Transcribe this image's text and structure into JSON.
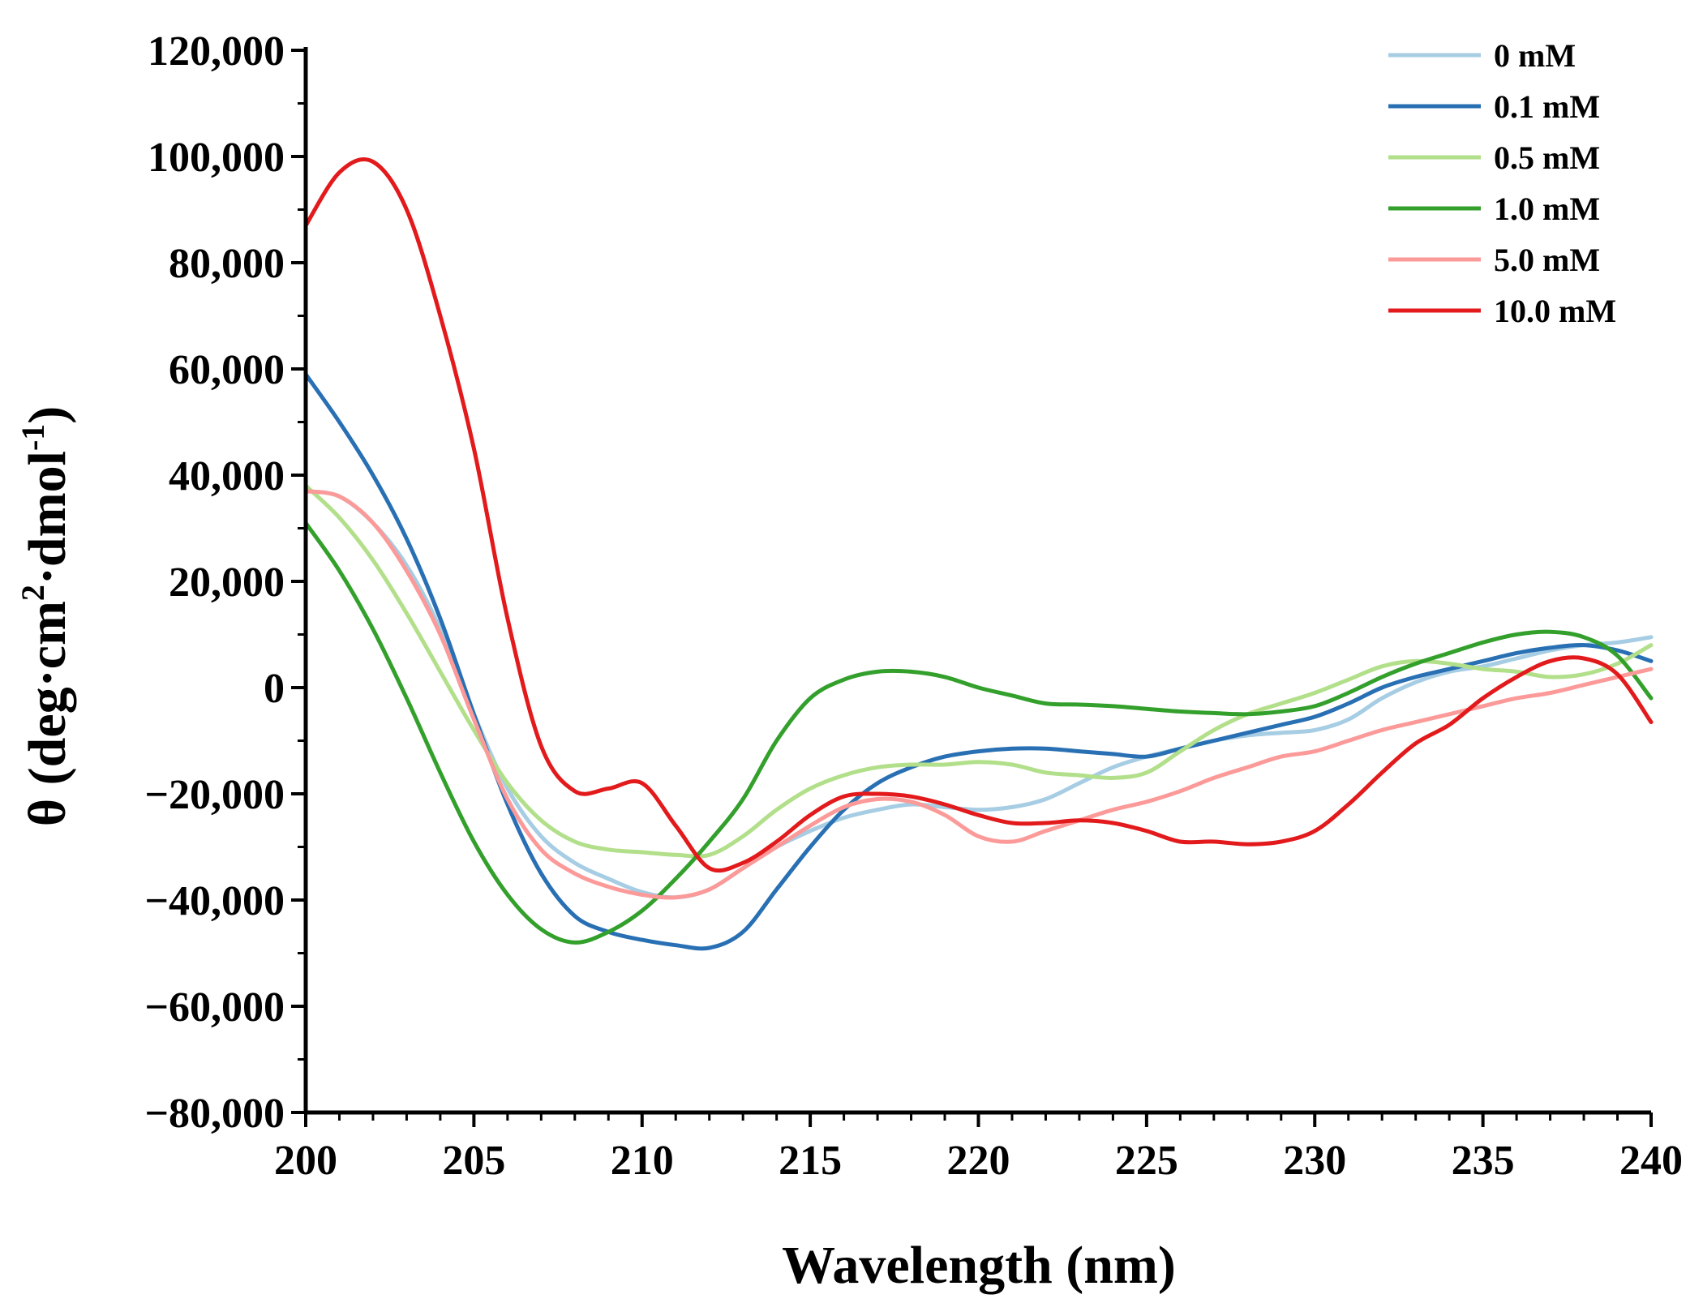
{
  "chart_data": {
    "type": "line",
    "title": "",
    "xlabel": "Wavelength (nm)",
    "ylabel": {
      "prefix": "θ (deg·cm",
      "sup1": "2",
      "middle": "·dmol",
      "sup2": "-1",
      "suffix": ")"
    },
    "xlim": [
      200,
      240
    ],
    "ylim": [
      -80000,
      120000
    ],
    "x_ticks": [
      200,
      205,
      210,
      215,
      220,
      225,
      230,
      235,
      240
    ],
    "x_tick_labels": [
      "200",
      "205",
      "210",
      "215",
      "220",
      "225",
      "230",
      "235",
      "240"
    ],
    "y_ticks": [
      -80000,
      -60000,
      -40000,
      -20000,
      0,
      20000,
      40000,
      60000,
      80000,
      100000,
      120000
    ],
    "y_tick_labels": [
      "−80,000",
      "−60,000",
      "−40,000",
      "−20,000",
      "0",
      "20,000",
      "40,000",
      "60,000",
      "80,000",
      "100,000",
      "120,000"
    ],
    "legend_position": "top-right",
    "series": [
      {
        "name": "0 mM",
        "color": "#a6cde3",
        "x": [
          200,
          201,
          202,
          203,
          204,
          205,
          206,
          207,
          208,
          209,
          210,
          211,
          212,
          213,
          214,
          215,
          216,
          217,
          218,
          219,
          220,
          221,
          222,
          223,
          224,
          225,
          226,
          227,
          228,
          229,
          230,
          231,
          232,
          233,
          234,
          235,
          236,
          237,
          238,
          239,
          240
        ],
        "y": [
          37000,
          36000,
          31000,
          23000,
          11000,
          -5000,
          -19000,
          -28000,
          -33000,
          -36000,
          -38500,
          -39500,
          -38000,
          -34000,
          -30000,
          -27000,
          -24500,
          -23000,
          -22000,
          -22500,
          -23000,
          -22500,
          -21000,
          -18000,
          -15000,
          -13000,
          -11500,
          -10000,
          -9000,
          -8500,
          -8000,
          -6000,
          -2000,
          1000,
          3000,
          4000,
          5500,
          7000,
          8000,
          8500,
          9500
        ]
      },
      {
        "name": "0.1 mM",
        "color": "#2870b3",
        "x": [
          200,
          201,
          202,
          203,
          204,
          205,
          206,
          207,
          208,
          209,
          210,
          211,
          212,
          213,
          214,
          215,
          216,
          217,
          218,
          219,
          220,
          221,
          222,
          223,
          224,
          225,
          226,
          227,
          228,
          229,
          230,
          231,
          232,
          233,
          234,
          235,
          236,
          237,
          238,
          239,
          240
        ],
        "y": [
          59000,
          50000,
          40000,
          28000,
          13000,
          -5000,
          -22000,
          -35000,
          -43000,
          -46000,
          -47500,
          -48500,
          -49000,
          -46000,
          -38000,
          -30000,
          -23000,
          -18000,
          -15000,
          -13000,
          -12000,
          -11500,
          -11500,
          -12000,
          -12500,
          -13000,
          -11500,
          -10000,
          -8500,
          -7000,
          -5500,
          -3000,
          0,
          2000,
          3500,
          5000,
          6500,
          7500,
          8000,
          7000,
          5000
        ]
      },
      {
        "name": "0.5 mM",
        "color": "#b2df8a",
        "x": [
          200,
          201,
          202,
          203,
          204,
          205,
          206,
          207,
          208,
          209,
          210,
          211,
          212,
          213,
          214,
          215,
          216,
          217,
          218,
          219,
          220,
          221,
          222,
          223,
          224,
          225,
          226,
          227,
          228,
          229,
          230,
          231,
          232,
          233,
          234,
          235,
          236,
          237,
          238,
          239,
          240
        ],
        "y": [
          38000,
          32000,
          24000,
          14000,
          3000,
          -8000,
          -18000,
          -25000,
          -29000,
          -30500,
          -31000,
          -31500,
          -31500,
          -28000,
          -23000,
          -19000,
          -16500,
          -15000,
          -14500,
          -14500,
          -14000,
          -14500,
          -16000,
          -16500,
          -17000,
          -16000,
          -12000,
          -8000,
          -5000,
          -3000,
          -1000,
          1500,
          4000,
          5000,
          4500,
          3500,
          3000,
          2000,
          2500,
          4500,
          8000
        ]
      },
      {
        "name": "1.0 mM",
        "color": "#33a02c",
        "x": [
          200,
          201,
          202,
          203,
          204,
          205,
          206,
          207,
          208,
          209,
          210,
          211,
          212,
          213,
          214,
          215,
          216,
          217,
          218,
          219,
          220,
          221,
          222,
          223,
          224,
          225,
          226,
          227,
          228,
          229,
          230,
          231,
          232,
          233,
          234,
          235,
          236,
          237,
          238,
          239,
          240
        ],
        "y": [
          31000,
          22000,
          11000,
          -2000,
          -16000,
          -29000,
          -39000,
          -45500,
          -48000,
          -46000,
          -42000,
          -36000,
          -29000,
          -21000,
          -10000,
          -2000,
          1500,
          3000,
          3000,
          2000,
          0,
          -1500,
          -3000,
          -3200,
          -3500,
          -4000,
          -4500,
          -4800,
          -5000,
          -4500,
          -3500,
          -1000,
          2000,
          4500,
          6500,
          8500,
          10000,
          10500,
          9500,
          6000,
          -2000
        ]
      },
      {
        "name": "5.0 mM",
        "color": "#fb9a99",
        "x": [
          200,
          201,
          202,
          203,
          204,
          205,
          206,
          207,
          208,
          209,
          210,
          211,
          212,
          213,
          214,
          215,
          216,
          217,
          218,
          219,
          220,
          221,
          222,
          223,
          224,
          225,
          226,
          227,
          228,
          229,
          230,
          231,
          232,
          233,
          234,
          235,
          236,
          237,
          238,
          239,
          240
        ],
        "y": [
          37000,
          36000,
          31000,
          22000,
          10000,
          -6000,
          -21000,
          -30500,
          -35000,
          -37500,
          -39000,
          -39500,
          -38000,
          -34000,
          -30000,
          -26000,
          -22500,
          -21000,
          -21500,
          -24000,
          -28000,
          -29000,
          -27000,
          -25000,
          -23000,
          -21500,
          -19500,
          -17000,
          -15000,
          -13000,
          -12000,
          -10000,
          -8000,
          -6500,
          -5000,
          -3500,
          -2000,
          -1000,
          500,
          2000,
          3500
        ]
      },
      {
        "name": "10.0 mM",
        "color": "#e31a1c",
        "x": [
          200,
          201,
          202,
          203,
          204,
          205,
          206,
          207,
          208,
          209,
          210,
          211,
          212,
          213,
          214,
          215,
          216,
          217,
          218,
          219,
          220,
          221,
          222,
          223,
          224,
          225,
          226,
          227,
          228,
          229,
          230,
          231,
          232,
          233,
          234,
          235,
          236,
          237,
          238,
          239,
          240
        ],
        "y": [
          87000,
          97000,
          99000,
          90000,
          70000,
          45000,
          13000,
          -11000,
          -19500,
          -19000,
          -18000,
          -26000,
          -34000,
          -33000,
          -29000,
          -24000,
          -20500,
          -20000,
          -20500,
          -22000,
          -24000,
          -25500,
          -25500,
          -25000,
          -25500,
          -27000,
          -29000,
          -29000,
          -29500,
          -29000,
          -27000,
          -22000,
          -16000,
          -10500,
          -7000,
          -2000,
          2000,
          5000,
          5500,
          2500,
          -6500
        ]
      }
    ]
  }
}
